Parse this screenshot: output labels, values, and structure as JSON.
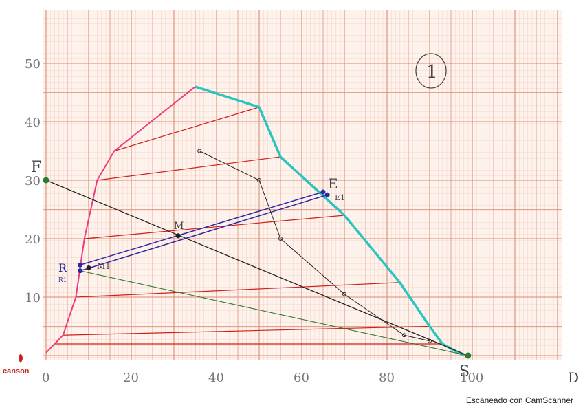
{
  "page_number": "1",
  "brand": "canson",
  "scan_watermark": "Escaneado con CamScanner",
  "axes": {
    "x_ticks": [
      "0",
      "20",
      "40",
      "60",
      "80",
      "100"
    ],
    "y_ticks": [
      "10",
      "20",
      "30",
      "40",
      "50"
    ],
    "x_range": [
      0,
      100
    ],
    "y_range": [
      0,
      55
    ]
  },
  "labels": {
    "F": "F",
    "S": "S",
    "M": "M",
    "M1": "M1",
    "E": "E",
    "E1": "E1",
    "R": "R",
    "R1": "R1",
    "D": "D"
  },
  "colors": {
    "paper_background": "#fdf3ec",
    "grid_minor": "#f0b9a8",
    "grid_major": "#d98a74",
    "extract_branch": "#28c4be",
    "raffinate_branch": "#ee3b7a",
    "tie_lines": "#d02018",
    "operating_line": "#2c2aa0",
    "feed_line": "#222222",
    "solvent_line": "#2d7a35"
  },
  "chart_data": {
    "type": "scatter",
    "extract_curve": [
      [
        35,
        46
      ],
      [
        50,
        42.5
      ],
      [
        55,
        34
      ],
      [
        70,
        24
      ],
      [
        83,
        12.5
      ],
      [
        90,
        5
      ],
      [
        93,
        2
      ],
      [
        98,
        0
      ]
    ],
    "raffinate_curve": [
      [
        0,
        0.5
      ],
      [
        2,
        2
      ],
      [
        4,
        3.5
      ],
      [
        7,
        10
      ],
      [
        9,
        20
      ],
      [
        12,
        30
      ],
      [
        16,
        35
      ],
      [
        35,
        46
      ]
    ],
    "tie_lines": [
      [
        [
          16,
          35
        ],
        [
          50,
          42.5
        ]
      ],
      [
        [
          12,
          30
        ],
        [
          55,
          34
        ]
      ],
      [
        [
          9,
          20
        ],
        [
          70,
          24
        ]
      ],
      [
        [
          7,
          10
        ],
        [
          83,
          12.5
        ]
      ],
      [
        [
          4,
          3.5
        ],
        [
          90,
          5
        ]
      ],
      [
        [
          2,
          2
        ],
        [
          93,
          2
        ]
      ]
    ],
    "points": {
      "F": [
        0,
        30
      ],
      "S": [
        99,
        0
      ],
      "M": [
        31,
        20.5
      ],
      "M1": [
        10,
        15
      ],
      "E": [
        65,
        28
      ],
      "E1": [
        66,
        27.5
      ],
      "R": [
        8,
        15.5
      ],
      "R1": [
        8,
        14.5
      ]
    },
    "auxiliary_points": [
      [
        36,
        35
      ],
      [
        50,
        30
      ],
      [
        55,
        20
      ],
      [
        70,
        10.5
      ],
      [
        84,
        3.5
      ],
      [
        90,
        2.5
      ]
    ]
  }
}
